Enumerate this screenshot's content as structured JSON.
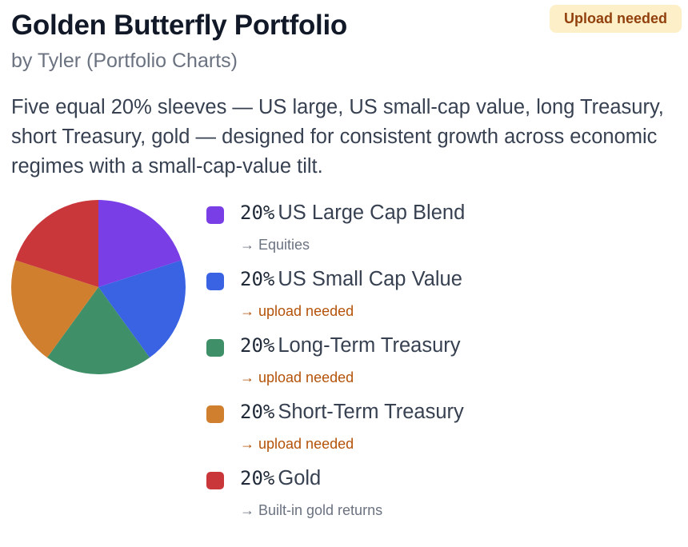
{
  "header": {
    "title": "Golden Butterfly Portfolio",
    "byline": "by Tyler (Portfolio Charts)",
    "badge": "Upload needed",
    "description": "Five equal 20% sleeves — US large, US small-cap value, long Treasury, short Treasury, gold — designed for consistent growth across economic regimes with a small-cap-value tilt."
  },
  "chart_data": {
    "type": "pie",
    "categories": [
      "US Large Cap Blend",
      "US Small Cap Value",
      "Long-Term Treasury",
      "Short-Term Treasury",
      "Gold"
    ],
    "values": [
      20,
      20,
      20,
      20,
      20
    ],
    "colors": [
      "#7a3ee6",
      "#3a63e3",
      "#3f9068",
      "#d07f2e",
      "#c9373a"
    ]
  },
  "holdings": [
    {
      "percent": "20%",
      "name": "US Large Cap Blend",
      "note": "→ Equities",
      "status": "ok",
      "color": "#7a3ee6"
    },
    {
      "percent": "20%",
      "name": "US Small Cap Value",
      "note": "→ upload needed",
      "status": "warn",
      "color": "#3a63e3"
    },
    {
      "percent": "20%",
      "name": "Long-Term Treasury",
      "note": "→ upload needed",
      "status": "warn",
      "color": "#3f9068"
    },
    {
      "percent": "20%",
      "name": "Short-Term Treasury",
      "note": "→ upload needed",
      "status": "warn",
      "color": "#d07f2e"
    },
    {
      "percent": "20%",
      "name": "Gold",
      "note": "→ Built-in gold returns",
      "status": "ok",
      "color": "#c9373a"
    }
  ]
}
